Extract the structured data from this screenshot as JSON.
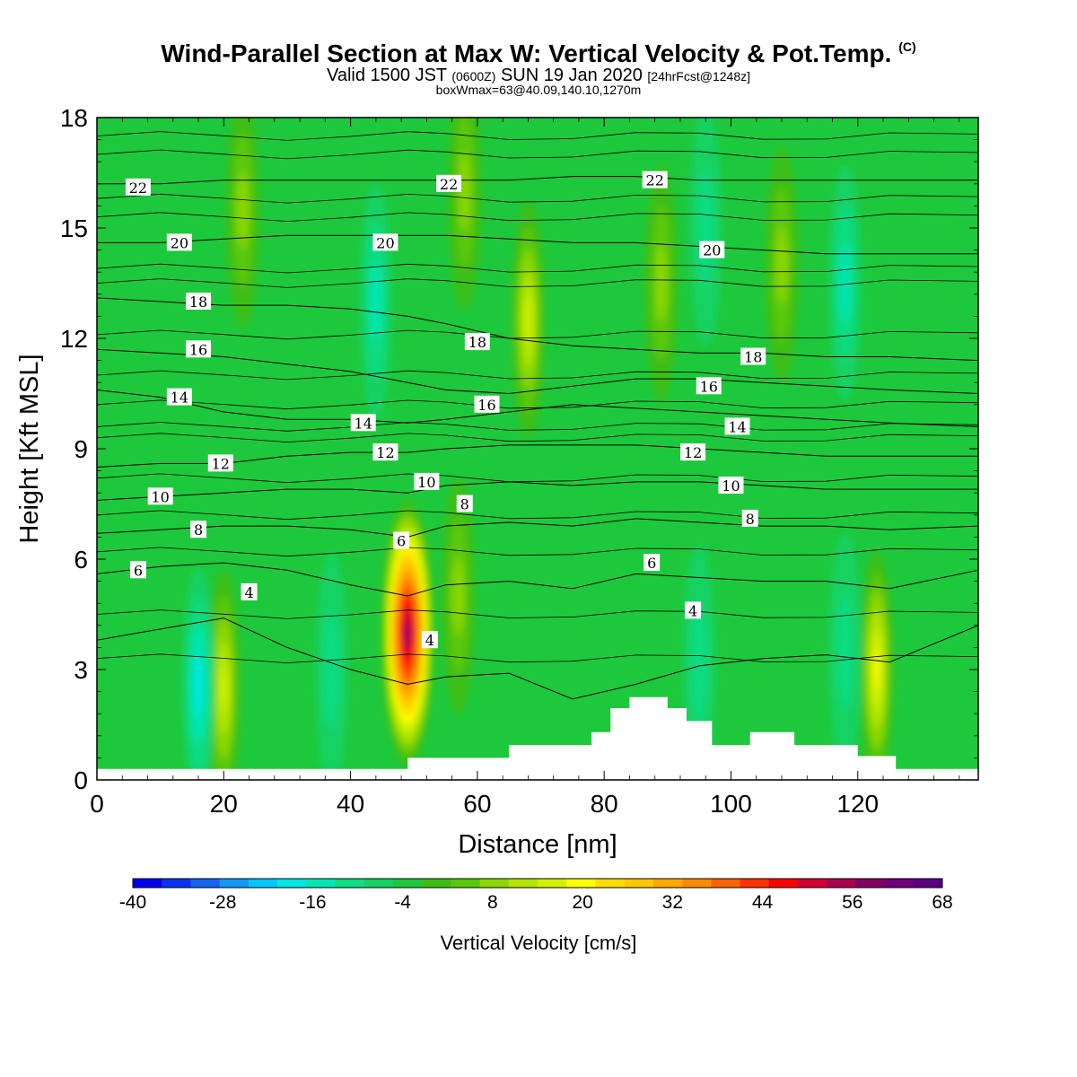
{
  "header": {
    "title": "Wind-Parallel Section at Max W: Vertical Velocity & Pot.Temp.",
    "copyright": "(C)",
    "valid_prefix": "Valid 1500 JST",
    "valid_utc": "(0600Z)",
    "valid_date": "SUN 19 Jan 2020",
    "forecast": "[24hrFcst@1248z]",
    "boxinfo": "boxWmax=63@40.09,140.10,1270m"
  },
  "chart_data": {
    "type": "heatmap",
    "xlabel": "Distance [nm]",
    "ylabel": "Height [Kft MSL]",
    "xlim": [
      0,
      139
    ],
    "ylim": [
      0,
      18
    ],
    "x_ticks": [
      0,
      20,
      40,
      60,
      80,
      100,
      120
    ],
    "y_ticks": [
      0,
      3,
      6,
      9,
      12,
      15,
      18
    ],
    "colorbar": {
      "label": "Vertical Velocity [cm/s]",
      "min": -40,
      "max": 68,
      "step": 4,
      "tick_labels": [
        "-40",
        "-28",
        "-16",
        "-4",
        "8",
        "20",
        "32",
        "44",
        "56",
        "68"
      ],
      "colors": [
        "#0000ee",
        "#0a32f0",
        "#1464f0",
        "#1496f5",
        "#00c8ff",
        "#00e6e6",
        "#00e6b4",
        "#10dc82",
        "#14d264",
        "#1ec83c",
        "#3cbe14",
        "#5ac80a",
        "#8cd700",
        "#b4e600",
        "#d2f000",
        "#ffff00",
        "#ffdc00",
        "#ffc800",
        "#ffaa00",
        "#ff8c00",
        "#ff6400",
        "#ff3200",
        "#ff0000",
        "#d20032",
        "#aa0050",
        "#820064",
        "#6e0078",
        "#5a0082"
      ]
    },
    "field_background": -2,
    "velocity_features": [
      {
        "x": 49,
        "z": 4.0,
        "peak": 63
      },
      {
        "x": 20,
        "z": 2.5,
        "peak": 18
      },
      {
        "x": 16,
        "z": 2.6,
        "peak": -18
      },
      {
        "x": 123,
        "z": 3.0,
        "peak": 24
      },
      {
        "x": 68,
        "z": 12.5,
        "peak": 18
      },
      {
        "x": 44,
        "z": 13.0,
        "peak": -14
      },
      {
        "x": 118,
        "z": 13.5,
        "peak": -16
      },
      {
        "x": 96,
        "z": 15.0,
        "peak": -10
      },
      {
        "x": 23,
        "z": 15.5,
        "peak": 12
      },
      {
        "x": 89,
        "z": 13.5,
        "peak": 12
      },
      {
        "x": 57,
        "z": 5.0,
        "peak": 10
      },
      {
        "x": 95,
        "z": 3.2,
        "peak": -12
      },
      {
        "x": 118,
        "z": 3.5,
        "peak": -12
      },
      {
        "x": 37,
        "z": 3.0,
        "peak": -10
      },
      {
        "x": 108,
        "z": 14.0,
        "peak": 10
      },
      {
        "x": 58,
        "z": 16.0,
        "peak": 10
      }
    ],
    "terrain": {
      "x": [
        0,
        49,
        49,
        65,
        65,
        78,
        78,
        81,
        81,
        84,
        84,
        90,
        90,
        93,
        93,
        97,
        97,
        103,
        103,
        110,
        110,
        120,
        120,
        123,
        123,
        126,
        126,
        139
      ],
      "z": [
        0.3,
        0.3,
        0.6,
        0.6,
        0.95,
        0.95,
        1.3,
        1.3,
        1.95,
        1.95,
        2.25,
        2.25,
        1.95,
        1.95,
        1.6,
        1.6,
        0.95,
        0.95,
        1.3,
        1.3,
        0.95,
        0.95,
        0.65,
        0.65,
        0.65,
        0.65,
        0.3,
        0.3
      ]
    },
    "contour_x": [
      0,
      10,
      20,
      30,
      40,
      49,
      55,
      65,
      75,
      85,
      95,
      105,
      115,
      125,
      139
    ],
    "contours": [
      {
        "label": "4",
        "z": [
          3.8,
          4.1,
          4.4,
          3.6,
          3.0,
          2.6,
          2.8,
          2.9,
          2.2,
          2.6,
          3.1,
          3.3,
          3.4,
          3.2,
          4.2
        ]
      },
      {
        "label": "6",
        "z": [
          5.6,
          5.8,
          5.9,
          5.7,
          5.3,
          5.0,
          5.3,
          5.4,
          5.2,
          5.6,
          5.5,
          5.4,
          5.4,
          5.2,
          5.7
        ]
      },
      {
        "label": "8",
        "z": [
          6.7,
          6.8,
          6.9,
          6.9,
          6.8,
          6.6,
          6.9,
          7.0,
          6.9,
          7.1,
          7.0,
          6.9,
          6.9,
          6.8,
          6.9
        ]
      },
      {
        "label": "10",
        "z": [
          7.6,
          7.7,
          7.8,
          7.9,
          7.9,
          7.8,
          8.0,
          8.1,
          8.0,
          8.1,
          8.1,
          8.0,
          7.9,
          7.9,
          7.9
        ]
      },
      {
        "label": "12",
        "z": [
          8.5,
          8.6,
          8.6,
          8.8,
          8.9,
          8.9,
          9.0,
          9.1,
          9.1,
          9.1,
          9.0,
          8.9,
          8.8,
          8.8,
          8.8
        ]
      },
      {
        "label": "14",
        "z": [
          10.6,
          10.4,
          10.0,
          9.8,
          9.8,
          9.7,
          9.8,
          10.0,
          10.2,
          10.1,
          10.0,
          9.9,
          9.8,
          9.7,
          9.6
        ]
      },
      {
        "label": "16",
        "z": [
          11.7,
          11.6,
          11.5,
          11.3,
          11.1,
          10.8,
          10.6,
          10.5,
          10.7,
          10.9,
          10.9,
          10.8,
          10.7,
          10.6,
          10.5
        ]
      },
      {
        "label": "18",
        "z": [
          13.1,
          13.0,
          12.9,
          12.9,
          12.8,
          12.6,
          12.4,
          12.0,
          11.8,
          11.7,
          11.6,
          11.6,
          11.5,
          11.5,
          11.4
        ]
      },
      {
        "label": "20",
        "z": [
          14.6,
          14.6,
          14.7,
          14.8,
          14.8,
          14.8,
          14.8,
          14.7,
          14.6,
          14.6,
          14.5,
          14.4,
          14.3,
          14.3,
          14.3
        ]
      },
      {
        "label": "22",
        "z": [
          16.2,
          16.2,
          16.3,
          16.3,
          16.3,
          16.3,
          16.3,
          16.3,
          16.4,
          16.4,
          16.3,
          16.3,
          16.3,
          16.3,
          16.3
        ]
      }
    ],
    "extra_isolines_z": [
      3.3,
      4.5,
      6.2,
      7.2,
      8.2,
      9.3,
      9.6,
      10.2,
      11.0,
      12.1,
      13.5,
      13.9,
      15.3,
      15.8,
      17.0,
      17.5
    ],
    "contour_labels": [
      {
        "text": "22",
        "x": 6.5,
        "z": 16.1
      },
      {
        "text": "22",
        "x": 55.5,
        "z": 16.2
      },
      {
        "text": "22",
        "x": 88,
        "z": 16.3
      },
      {
        "text": "20",
        "x": 13,
        "z": 14.6
      },
      {
        "text": "20",
        "x": 45.5,
        "z": 14.6
      },
      {
        "text": "20",
        "x": 97,
        "z": 14.4
      },
      {
        "text": "18",
        "x": 16,
        "z": 13.0
      },
      {
        "text": "18",
        "x": 60,
        "z": 11.9
      },
      {
        "text": "18",
        "x": 103.5,
        "z": 11.5
      },
      {
        "text": "16",
        "x": 16,
        "z": 11.7
      },
      {
        "text": "16",
        "x": 61.5,
        "z": 10.2
      },
      {
        "text": "16",
        "x": 96.5,
        "z": 10.7
      },
      {
        "text": "14",
        "x": 13,
        "z": 10.4
      },
      {
        "text": "14",
        "x": 42,
        "z": 9.7
      },
      {
        "text": "14",
        "x": 101,
        "z": 9.6
      },
      {
        "text": "12",
        "x": 19.5,
        "z": 8.6
      },
      {
        "text": "12",
        "x": 45.5,
        "z": 8.9
      },
      {
        "text": "12",
        "x": 94,
        "z": 8.9
      },
      {
        "text": "10",
        "x": 10,
        "z": 7.7
      },
      {
        "text": "10",
        "x": 52,
        "z": 8.1
      },
      {
        "text": "10",
        "x": 100,
        "z": 8.0
      },
      {
        "text": "8",
        "x": 16,
        "z": 6.8
      },
      {
        "text": "8",
        "x": 58,
        "z": 7.5
      },
      {
        "text": "8",
        "x": 103,
        "z": 7.1
      },
      {
        "text": "6",
        "x": 6.5,
        "z": 5.7
      },
      {
        "text": "6",
        "x": 48,
        "z": 6.5
      },
      {
        "text": "6",
        "x": 87.5,
        "z": 5.9
      },
      {
        "text": "4",
        "x": 24,
        "z": 5.1
      },
      {
        "text": "4",
        "x": 52.5,
        "z": 3.8
      },
      {
        "text": "4",
        "x": 94,
        "z": 4.6
      }
    ]
  }
}
